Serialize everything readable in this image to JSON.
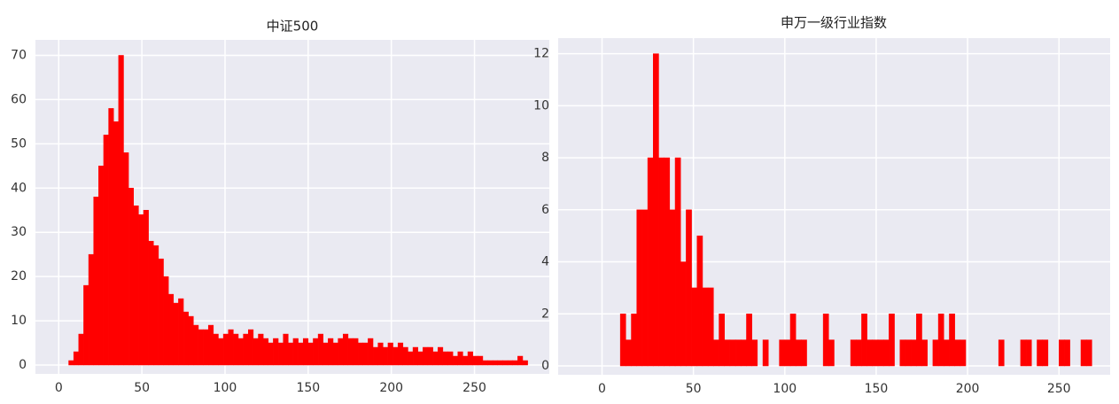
{
  "chart_data": [
    {
      "type": "histogram",
      "title": "中证500",
      "color": "#ff0000",
      "grid": true,
      "bins": [
        6,
        9,
        12,
        15,
        18,
        21,
        24,
        27,
        30,
        33,
        36,
        39,
        42,
        45,
        48,
        51,
        54,
        57,
        60,
        63,
        66,
        69,
        72,
        75,
        78,
        81,
        84,
        87,
        90,
        93,
        96,
        99,
        102,
        105,
        108,
        111,
        114,
        117,
        120,
        123,
        126,
        129,
        132,
        135,
        138,
        141,
        144,
        147,
        150,
        153,
        156,
        159,
        162,
        165,
        168,
        171,
        174,
        177,
        180,
        183,
        186,
        189,
        192,
        195,
        198,
        201,
        204,
        207,
        210,
        213,
        216,
        219,
        222,
        225,
        228,
        231,
        234,
        237,
        240,
        243,
        246,
        249,
        252,
        255,
        258,
        261,
        264,
        267,
        270,
        273,
        276,
        279,
        282
      ],
      "values": [
        1,
        3,
        7,
        18,
        25,
        38,
        45,
        52,
        58,
        55,
        70,
        48,
        40,
        36,
        34,
        35,
        28,
        27,
        24,
        20,
        16,
        14,
        15,
        12,
        11,
        9,
        8,
        8,
        9,
        7,
        6,
        7,
        8,
        7,
        6,
        7,
        8,
        6,
        7,
        6,
        5,
        6,
        5,
        7,
        5,
        6,
        5,
        6,
        5,
        6,
        7,
        5,
        6,
        5,
        6,
        7,
        6,
        6,
        5,
        5,
        6,
        4,
        5,
        4,
        5,
        4,
        5,
        4,
        3,
        4,
        3,
        4,
        4,
        3,
        4,
        3,
        3,
        2,
        3,
        2,
        3,
        2,
        2,
        1,
        1,
        1,
        1,
        1,
        1,
        1,
        2,
        1
      ],
      "xlim": [
        -14,
        295
      ],
      "ylim": [
        0,
        73.5
      ],
      "xticks": [
        0,
        50,
        100,
        150,
        200,
        250
      ],
      "yticks": [
        0,
        10,
        20,
        30,
        40,
        50,
        60,
        70
      ]
    },
    {
      "type": "histogram",
      "title": "申万一级行业指数",
      "color": "#ff0000",
      "grid": true,
      "bins": [
        10,
        13,
        16,
        19,
        22,
        25,
        28,
        31,
        34,
        37,
        40,
        43,
        46,
        49,
        52,
        55,
        58,
        61,
        64,
        67,
        70,
        73,
        76,
        79,
        82,
        85,
        88,
        91,
        94,
        97,
        100,
        103,
        106,
        109,
        112,
        115,
        118,
        121,
        124,
        127,
        130,
        133,
        136,
        139,
        142,
        145,
        148,
        151,
        154,
        157,
        160,
        163,
        166,
        169,
        172,
        175,
        178,
        181,
        184,
        187,
        190,
        193,
        196,
        199,
        202,
        205,
        208,
        211,
        214,
        217,
        220,
        223,
        226,
        229,
        232,
        235,
        238,
        241,
        244,
        247,
        250,
        253,
        256,
        259,
        262,
        265,
        268
      ],
      "values": [
        2,
        1,
        2,
        6,
        6,
        8,
        12,
        8,
        8,
        6,
        8,
        4,
        6,
        3,
        5,
        3,
        3,
        1,
        2,
        1,
        1,
        1,
        1,
        2,
        1,
        0,
        1,
        0,
        0,
        1,
        1,
        2,
        1,
        1,
        0,
        0,
        0,
        2,
        1,
        0,
        0,
        0,
        1,
        1,
        2,
        1,
        1,
        1,
        1,
        2,
        0,
        1,
        1,
        1,
        2,
        1,
        0,
        1,
        2,
        1,
        2,
        1,
        1,
        0,
        0,
        0,
        0,
        0,
        0,
        1,
        0,
        0,
        0,
        1,
        1,
        0,
        1,
        1,
        0,
        0,
        1,
        1,
        0,
        0,
        1,
        1
      ],
      "xlim": [
        -24,
        278
      ],
      "ylim": [
        0,
        12.6
      ],
      "xticks": [
        0,
        50,
        100,
        150,
        200,
        250
      ],
      "yticks": [
        0,
        2,
        4,
        6,
        8,
        10,
        12
      ]
    }
  ]
}
